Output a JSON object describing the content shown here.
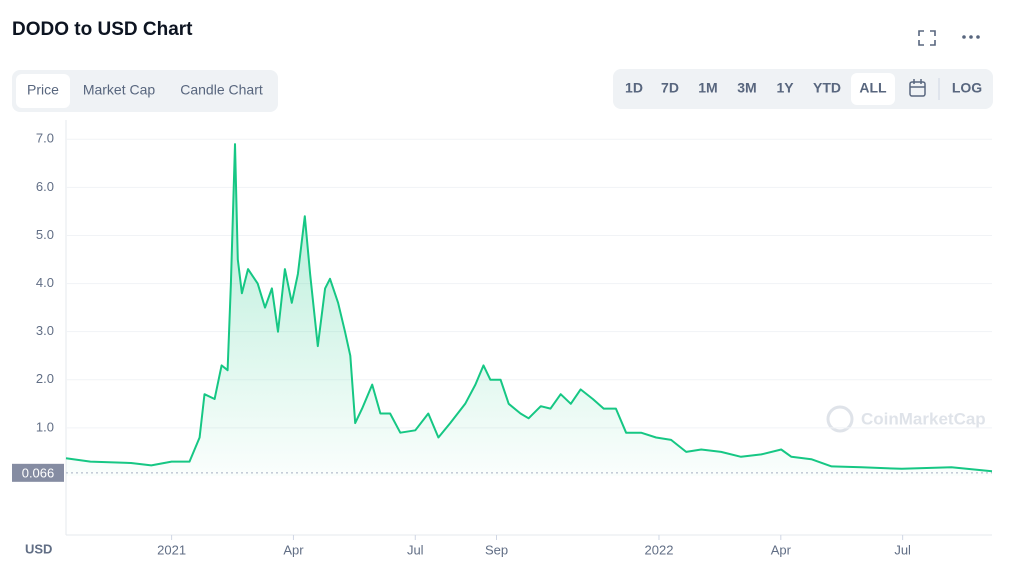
{
  "ui": {
    "title": "DODO to USD Chart",
    "tabs": [
      "Price",
      "Market Cap",
      "Candle Chart"
    ],
    "active_tab": 0,
    "ranges": [
      "1D",
      "7D",
      "1M",
      "3M",
      "1Y",
      "YTD",
      "ALL"
    ],
    "active_range": 6,
    "log_button": "LOG",
    "watermark": "CoinMarketCap"
  },
  "chart_data": {
    "type": "line",
    "y_axis_label": "USD",
    "log_scale": false,
    "grid": true,
    "series": [
      {
        "name": "DODO",
        "color": "#16c784",
        "x": [
          -2.6,
          -2.0,
          -1.0,
          -0.5,
          0,
          0.44,
          0.69,
          0.81,
          1.06,
          1.23,
          1.38,
          1.46,
          1.56,
          1.63,
          1.73,
          1.88,
          2.12,
          2.3,
          2.47,
          2.62,
          2.79,
          2.96,
          3.11,
          3.28,
          3.41,
          3.6,
          3.78,
          3.9,
          4.1,
          4.27,
          4.4,
          4.52,
          4.69,
          4.94,
          5.14,
          5.38,
          5.63,
          6.0,
          6.32,
          6.57,
          6.86,
          7.23,
          7.48,
          7.68,
          7.85,
          8.1,
          8.3,
          8.59,
          8.79,
          9.09,
          9.33,
          9.58,
          9.83,
          10.07,
          10.37,
          10.64,
          10.94,
          11.19,
          11.56,
          11.93,
          12.3,
          12.67,
          13.04,
          13.53,
          14.02,
          14.52,
          15.01,
          15.26,
          15.75,
          16.25,
          16.99,
          17.98,
          19.2,
          20.2
        ],
        "values": [
          0.37,
          0.3,
          0.27,
          0.22,
          0.3,
          0.3,
          0.8,
          1.7,
          1.6,
          2.3,
          2.2,
          4.0,
          6.9,
          4.5,
          3.8,
          4.3,
          4.0,
          3.5,
          3.9,
          3.0,
          4.3,
          3.6,
          4.2,
          5.4,
          4.2,
          2.7,
          3.9,
          4.1,
          3.6,
          3.0,
          2.5,
          1.1,
          1.4,
          1.9,
          1.3,
          1.3,
          0.9,
          0.95,
          1.3,
          0.8,
          1.1,
          1.5,
          1.9,
          2.3,
          2.0,
          2.0,
          1.5,
          1.3,
          1.2,
          1.45,
          1.4,
          1.7,
          1.5,
          1.8,
          1.6,
          1.4,
          1.4,
          0.9,
          0.9,
          0.8,
          0.75,
          0.5,
          0.55,
          0.5,
          0.4,
          0.45,
          0.55,
          0.4,
          0.35,
          0.2,
          0.18,
          0.15,
          0.18,
          0.1
        ]
      }
    ],
    "current_price": 0.066,
    "xlim": [
      -2.6,
      20.2
    ],
    "ylim": [
      0,
      7.4
    ],
    "xticks": [
      {
        "value": 0,
        "label": "2021"
      },
      {
        "value": 3,
        "label": "Apr"
      },
      {
        "value": 6,
        "label": "Jul"
      },
      {
        "value": 8,
        "label": "Sep"
      },
      {
        "value": 12,
        "label": "2022"
      },
      {
        "value": 15,
        "label": "Apr"
      },
      {
        "value": 18,
        "label": "Jul"
      }
    ],
    "yticks": [
      {
        "value": 1,
        "label": "1.0"
      },
      {
        "value": 2,
        "label": "2.0"
      },
      {
        "value": 3,
        "label": "3.0"
      },
      {
        "value": 4,
        "label": "4.0"
      },
      {
        "value": 5,
        "label": "5.0"
      },
      {
        "value": 6,
        "label": "6.0"
      },
      {
        "value": 7,
        "label": "7.0"
      }
    ]
  }
}
